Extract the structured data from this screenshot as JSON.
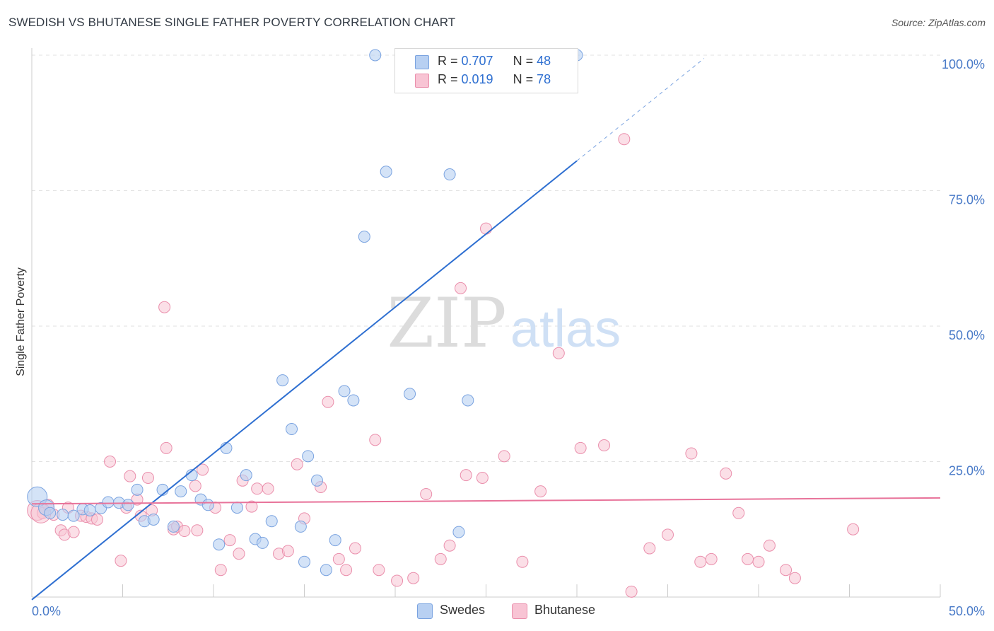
{
  "title": "SWEDISH VS BHUTANESE SINGLE FATHER POVERTY CORRELATION CHART",
  "source": "Source: ZipAtlas.com",
  "colors": {
    "swedes_fill": "#b8d0f2",
    "swedes_stroke": "#7aa3e0",
    "swedes_line": "#2e6fd1",
    "bhutanese_fill": "#f8c4d4",
    "bhutanese_stroke": "#ea8fac",
    "bhutanese_line": "#e8739a",
    "tick_text": "#4a7bc8",
    "grid": "#e2e2e2"
  },
  "legend": {
    "rows": [
      {
        "r_label": "R = ",
        "r_value": "0.707",
        "n_label": "N = ",
        "n_value": "48"
      },
      {
        "r_label": "R = ",
        "r_value": "0.019",
        "n_label": "N = ",
        "n_value": "78"
      }
    ]
  },
  "watermark": {
    "part1": "ZIP",
    "part2": "atlas"
  },
  "chart_data": {
    "type": "scatter",
    "title": "SWEDISH VS BHUTANESE SINGLE FATHER POVERTY CORRELATION CHART",
    "xlabel": "",
    "ylabel": "Single Father Poverty",
    "xlim": [
      0,
      50
    ],
    "ylim": [
      0,
      100
    ],
    "x_tick_labels": [
      "0.0%",
      "50.0%"
    ],
    "y_ticks": [
      25,
      50,
      75,
      100
    ],
    "y_tick_labels": [
      "25.0%",
      "50.0%",
      "75.0%",
      "100.0%"
    ],
    "grid": true,
    "legend_position": "bottom",
    "series": [
      {
        "name": "Swedes",
        "r": 0.707,
        "n": 48,
        "trend": {
          "x0": 0,
          "y0": -0.5,
          "x1": 30,
          "y1": 80.5,
          "dashed_to_x": 37
        },
        "points": [
          [
            0.3,
            18.5
          ],
          [
            0.8,
            16.5
          ],
          [
            1.0,
            15.5
          ],
          [
            1.7,
            15.2
          ],
          [
            2.3,
            15.0
          ],
          [
            2.8,
            16.2
          ],
          [
            3.2,
            16.0
          ],
          [
            3.8,
            16.4
          ],
          [
            4.2,
            17.5
          ],
          [
            4.8,
            17.4
          ],
          [
            5.3,
            17.0
          ],
          [
            5.8,
            19.8
          ],
          [
            6.2,
            14.0
          ],
          [
            6.7,
            14.3
          ],
          [
            7.2,
            19.8
          ],
          [
            7.8,
            13.0
          ],
          [
            8.2,
            19.5
          ],
          [
            8.8,
            22.5
          ],
          [
            9.3,
            18.0
          ],
          [
            9.7,
            17.0
          ],
          [
            10.3,
            9.7
          ],
          [
            10.7,
            27.5
          ],
          [
            11.3,
            16.5
          ],
          [
            11.8,
            22.5
          ],
          [
            12.3,
            10.7
          ],
          [
            12.7,
            10.0
          ],
          [
            13.2,
            14.0
          ],
          [
            13.8,
            40.0
          ],
          [
            14.3,
            31.0
          ],
          [
            14.8,
            13.0
          ],
          [
            15.2,
            26.0
          ],
          [
            15.7,
            21.5
          ],
          [
            16.2,
            5.0
          ],
          [
            16.7,
            10.5
          ],
          [
            17.2,
            38.0
          ],
          [
            17.7,
            36.3
          ],
          [
            18.3,
            66.5
          ],
          [
            18.9,
            100.0
          ],
          [
            19.5,
            78.5
          ],
          [
            20.8,
            37.5
          ],
          [
            21.9,
            100.0
          ],
          [
            23.0,
            78.0
          ],
          [
            23.5,
            12.0
          ],
          [
            24.0,
            36.3
          ],
          [
            24.4,
            100.0
          ],
          [
            27.8,
            100.0
          ],
          [
            30.0,
            100.0
          ],
          [
            15.0,
            6.5
          ]
        ]
      },
      {
        "name": "Bhutanese",
        "r": 0.019,
        "n": 78,
        "trend": {
          "x0": 0,
          "y0": 17.2,
          "x1": 50,
          "y1": 18.3
        },
        "points": [
          [
            0.3,
            16.0
          ],
          [
            0.6,
            15.5
          ],
          [
            0.9,
            17.0
          ],
          [
            1.2,
            15.2
          ],
          [
            1.6,
            12.3
          ],
          [
            1.8,
            11.5
          ],
          [
            2.0,
            16.5
          ],
          [
            2.3,
            12.0
          ],
          [
            2.7,
            15.0
          ],
          [
            3.0,
            14.8
          ],
          [
            3.3,
            14.5
          ],
          [
            3.6,
            14.3
          ],
          [
            4.3,
            25.0
          ],
          [
            4.9,
            6.7
          ],
          [
            5.2,
            16.5
          ],
          [
            5.4,
            22.3
          ],
          [
            5.8,
            18.0
          ],
          [
            6.0,
            15.0
          ],
          [
            6.4,
            22.0
          ],
          [
            6.6,
            16.0
          ],
          [
            7.3,
            53.5
          ],
          [
            7.4,
            27.5
          ],
          [
            7.8,
            12.5
          ],
          [
            8.0,
            13.0
          ],
          [
            8.4,
            12.2
          ],
          [
            9.0,
            20.5
          ],
          [
            9.1,
            12.3
          ],
          [
            9.4,
            23.5
          ],
          [
            10.1,
            16.5
          ],
          [
            10.4,
            5.0
          ],
          [
            10.9,
            10.5
          ],
          [
            11.4,
            8.0
          ],
          [
            11.6,
            21.5
          ],
          [
            12.1,
            16.7
          ],
          [
            12.4,
            20.0
          ],
          [
            13.0,
            20.0
          ],
          [
            13.6,
            8.0
          ],
          [
            14.1,
            8.5
          ],
          [
            14.6,
            24.5
          ],
          [
            15.0,
            14.5
          ],
          [
            15.9,
            20.3
          ],
          [
            16.3,
            36.0
          ],
          [
            16.9,
            7.0
          ],
          [
            17.3,
            5.0
          ],
          [
            17.8,
            9.0
          ],
          [
            18.9,
            29.0
          ],
          [
            19.1,
            5.0
          ],
          [
            20.1,
            3.0
          ],
          [
            21.0,
            3.5
          ],
          [
            21.7,
            19.0
          ],
          [
            22.5,
            7.0
          ],
          [
            23.0,
            9.5
          ],
          [
            23.6,
            57.0
          ],
          [
            23.9,
            22.5
          ],
          [
            24.8,
            22.0
          ],
          [
            25.0,
            68.0
          ],
          [
            26.0,
            26.0
          ],
          [
            27.0,
            6.5
          ],
          [
            28.0,
            19.5
          ],
          [
            29.0,
            45.0
          ],
          [
            30.2,
            27.5
          ],
          [
            31.5,
            28.0
          ],
          [
            32.6,
            84.5
          ],
          [
            33.0,
            1.0
          ],
          [
            34.0,
            9.0
          ],
          [
            35.0,
            11.5
          ],
          [
            36.3,
            26.5
          ],
          [
            36.8,
            6.5
          ],
          [
            37.4,
            7.0
          ],
          [
            38.2,
            22.8
          ],
          [
            38.9,
            15.5
          ],
          [
            39.4,
            7.0
          ],
          [
            40.0,
            6.5
          ],
          [
            40.6,
            9.5
          ],
          [
            41.5,
            5.0
          ],
          [
            42.0,
            3.5
          ],
          [
            45.2,
            12.5
          ],
          [
            0.5,
            15.5
          ]
        ]
      }
    ]
  }
}
